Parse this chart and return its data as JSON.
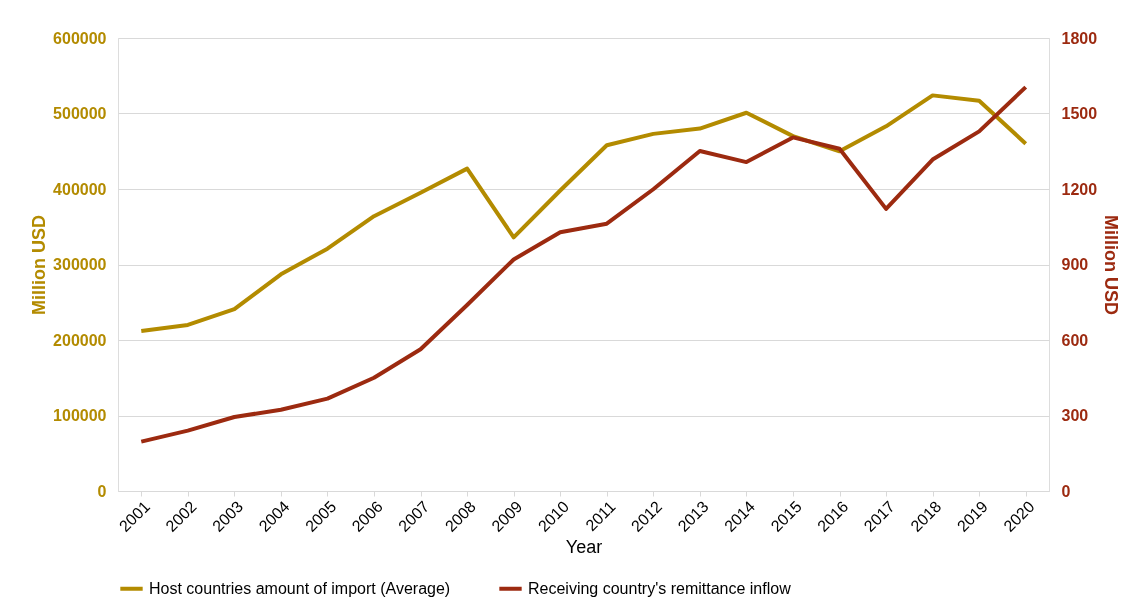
{
  "chart_data": {
    "type": "line",
    "categories": [
      "2001",
      "2002",
      "2003",
      "2004",
      "2005",
      "2006",
      "2007",
      "2008",
      "2009",
      "2010",
      "2011",
      "2012",
      "2013",
      "2014",
      "2015",
      "2016",
      "2017",
      "2018",
      "2019",
      "2020"
    ],
    "xlabel": "Year",
    "ylabel": "Million USD",
    "y2label": "Million USD",
    "ylim": [
      0,
      600000
    ],
    "yticks": [
      0,
      100000,
      200000,
      300000,
      400000,
      500000,
      600000
    ],
    "y2lim": [
      0,
      1800
    ],
    "y2ticks": [
      0,
      300,
      600,
      900,
      1200,
      1500,
      1800
    ],
    "grid": "y",
    "legend": "bottom",
    "marker": "none",
    "line_style": "solid",
    "series": [
      {
        "name": "Host countries amount of import (Average)",
        "color": "#b38b00",
        "values": [
          212000,
          220000,
          241000,
          287000,
          321000,
          364000,
          395000,
          427000,
          336000,
          398000,
          458000,
          473000,
          480000,
          501000,
          470000,
          450000,
          483000,
          524000,
          517000,
          460000
        ]
      },
      {
        "name": "Receiving country's remittance inflow",
        "color": "#9c2a10",
        "axis": "y2",
        "values": [
          196,
          240,
          294,
          323,
          367,
          450,
          563,
          739,
          920,
          1028,
          1062,
          1199,
          1351,
          1307,
          1405,
          1360,
          1121,
          1317,
          1429,
          1605
        ]
      }
    ]
  }
}
